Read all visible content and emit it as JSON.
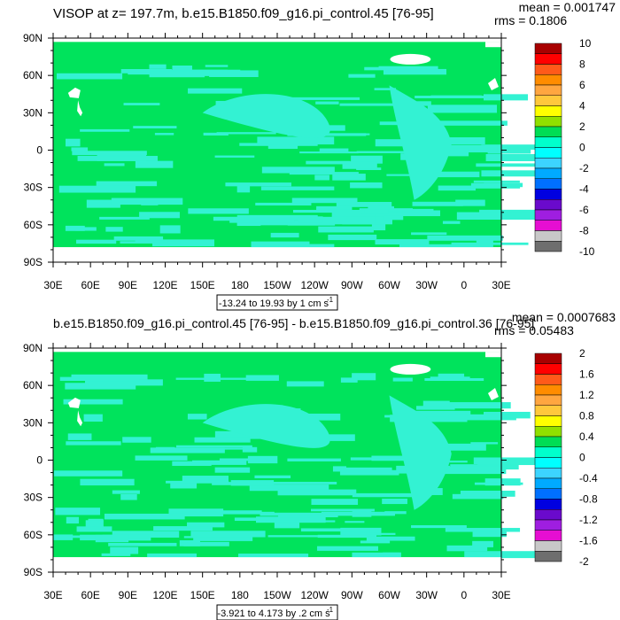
{
  "chart_data": [
    {
      "type": "heatmap",
      "title": "VISOP at z= 197.7m, b.e15.B1850.f09_g16.pi_control.45 [76-95]",
      "stats": {
        "mean_label": "mean = 0.001747",
        "rms_label": "rms = 0.1806"
      },
      "x_ticks": [
        "30E",
        "60E",
        "90E",
        "120E",
        "150E",
        "180",
        "150W",
        "120W",
        "90W",
        "60W",
        "30W",
        "0",
        "30E"
      ],
      "y_ticks": [
        "90N",
        "60N",
        "30N",
        "0",
        "30S",
        "60S",
        "90S"
      ],
      "xlim": [
        30,
        390
      ],
      "ylim": [
        -90,
        90
      ],
      "range_label": "-13.24 to 19.93 by 1 cm s",
      "range_sup": "-1",
      "colorbar": {
        "labels": [
          "10",
          "8",
          "6",
          "4",
          "2",
          "0",
          "-2",
          "-4",
          "-6",
          "-8",
          "-10"
        ],
        "colors": [
          "#a80000",
          "#ff0000",
          "#ff5a1a",
          "#ff8c00",
          "#ffa640",
          "#ffc83c",
          "#ffff00",
          "#90e000",
          "#00dd55",
          "#00ffcc",
          "#00ffff",
          "#3cd4ff",
          "#00aaff",
          "#0070ff",
          "#0000e0",
          "#6a0acc",
          "#9f1ee0",
          "#e60ed2",
          "#c8c8c8",
          "#6e6e6e"
        ]
      },
      "dominant_values": {
        "ocean_mostly": "0 to 2 (green)",
        "patches": "-2 to 0 (cyan)"
      }
    },
    {
      "type": "heatmap",
      "title": "b.e15.B1850.f09_g16.pi_control.45 [76-95] - b.e15.B1850.f09_g16.pi_control.36 [76-95]",
      "stats": {
        "mean_label": "mean = 0.0007683",
        "rms_label": "rms = 0.05483"
      },
      "x_ticks": [
        "30E",
        "60E",
        "90E",
        "120E",
        "150E",
        "180",
        "150W",
        "120W",
        "90W",
        "60W",
        "30W",
        "0",
        "30E"
      ],
      "y_ticks": [
        "90N",
        "60N",
        "30N",
        "0",
        "30S",
        "60S",
        "90S"
      ],
      "xlim": [
        30,
        390
      ],
      "ylim": [
        -90,
        90
      ],
      "range_label": "-3.921 to 4.173 by .2 cm s",
      "range_sup": "-1",
      "colorbar": {
        "labels": [
          "2",
          "1.6",
          "1.2",
          "0.8",
          "0.4",
          "0",
          "-0.4",
          "-0.8",
          "-1.2",
          "-1.6",
          "-2"
        ],
        "colors": [
          "#a80000",
          "#ff0000",
          "#ff5a1a",
          "#ff8c00",
          "#ffa640",
          "#ffc83c",
          "#ffff00",
          "#90e000",
          "#00dd55",
          "#00ffcc",
          "#00ffff",
          "#3cd4ff",
          "#00aaff",
          "#0070ff",
          "#0000e0",
          "#6a0acc",
          "#9f1ee0",
          "#e60ed2",
          "#c8c8c8",
          "#6e6e6e"
        ]
      },
      "dominant_values": {
        "ocean_mostly": "0 to 0.2 (green)",
        "patches": "-0.2 to 0 (cyan)"
      }
    }
  ],
  "colors": {
    "positive_fill": "#00e35c",
    "negative_fill": "#33f2d3",
    "land": "#ffffff"
  }
}
